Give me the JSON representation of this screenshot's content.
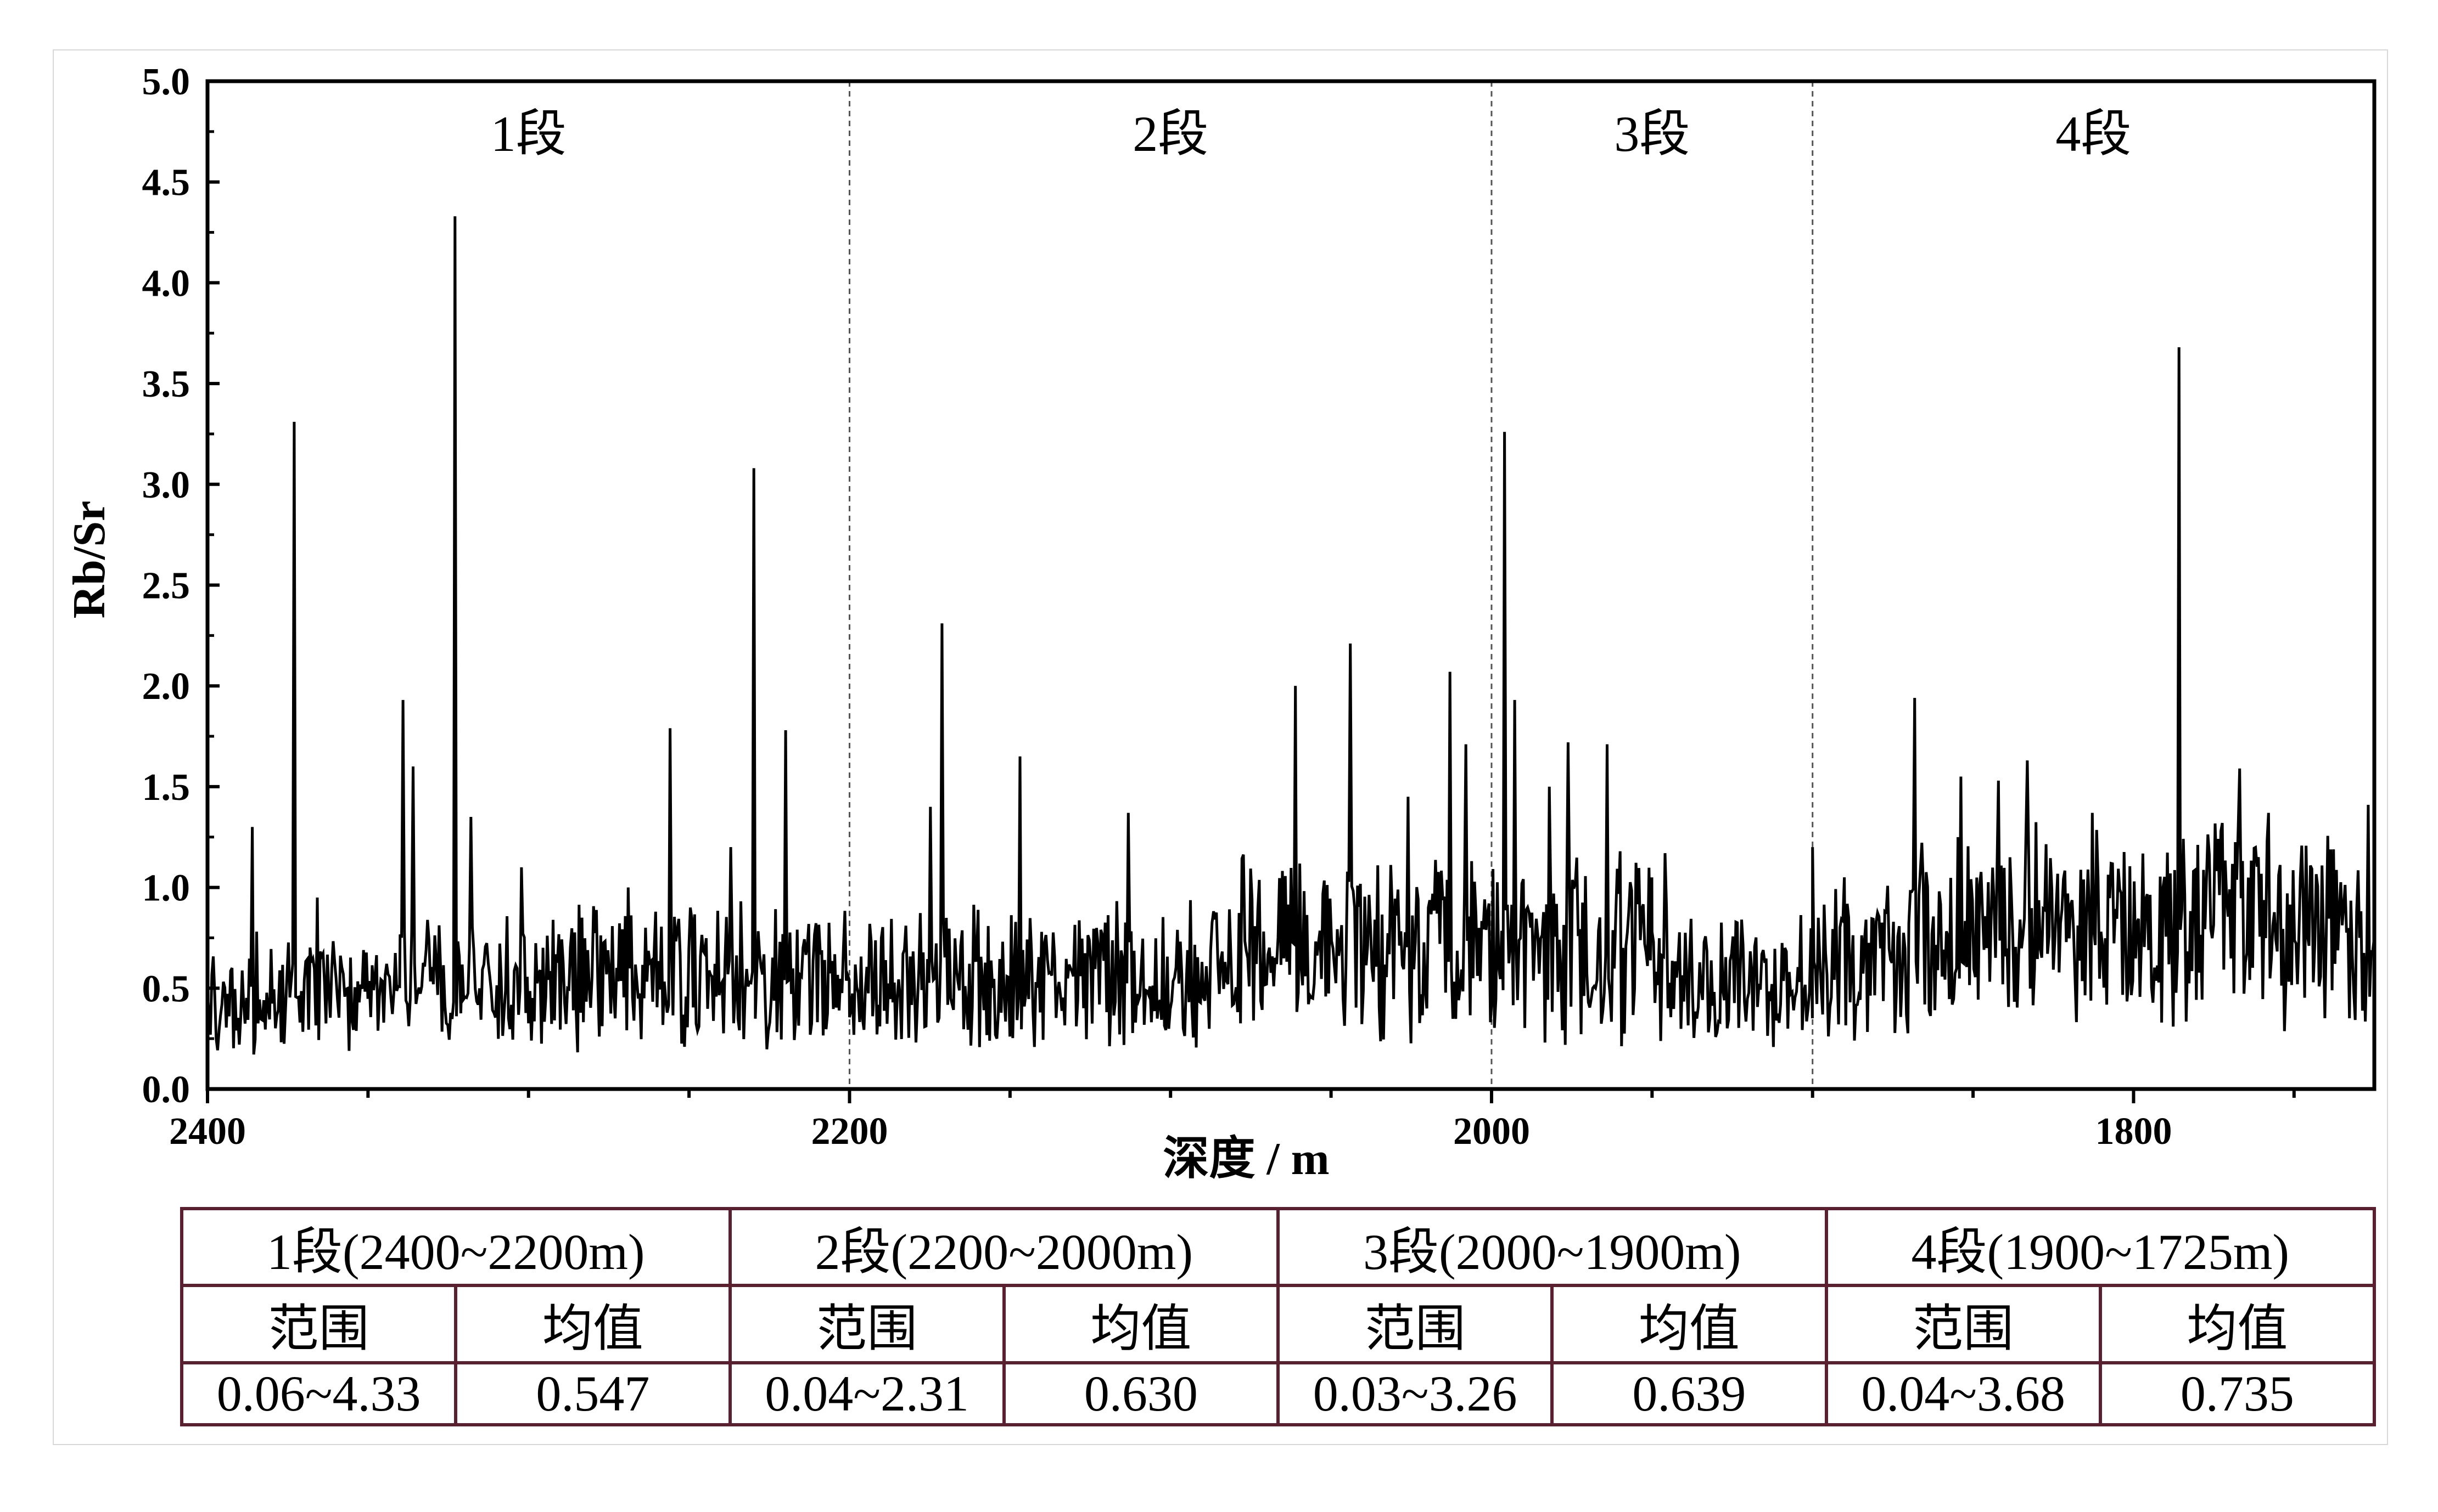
{
  "chart_data": {
    "type": "line",
    "xlabel": "深度 / m",
    "ylabel": "Rb/Sr",
    "xlim": [
      2400,
      1725
    ],
    "x_reversed": true,
    "ylim": [
      0.0,
      5.0
    ],
    "x_ticks": [
      2400,
      2200,
      2000,
      1800
    ],
    "y_ticks": [
      "0.0",
      "0.5",
      "1.0",
      "1.5",
      "2.0",
      "2.5",
      "3.0",
      "3.5",
      "4.0",
      "4.5",
      "5.0"
    ],
    "line_color": "#000000",
    "grid": false,
    "segments": [
      {
        "label": "1段",
        "from": 2400,
        "to": 2200
      },
      {
        "label": "2段",
        "from": 2200,
        "to": 2000
      },
      {
        "label": "3段",
        "from": 2000,
        "to": 1900
      },
      {
        "label": "4段",
        "from": 1900,
        "to": 1725
      }
    ],
    "boundaries": [
      2200,
      2000,
      1900
    ],
    "peaks": [
      {
        "x": 2386,
        "y": 1.3
      },
      {
        "x": 2373,
        "y": 3.31
      },
      {
        "x": 2366,
        "y": 0.95
      },
      {
        "x": 2339,
        "y": 1.93
      },
      {
        "x": 2336,
        "y": 1.6
      },
      {
        "x": 2323,
        "y": 4.33
      },
      {
        "x": 2318,
        "y": 1.35
      },
      {
        "x": 2302,
        "y": 1.1
      },
      {
        "x": 2269,
        "y": 1.0
      },
      {
        "x": 2256,
        "y": 1.79
      },
      {
        "x": 2237,
        "y": 1.2
      },
      {
        "x": 2230,
        "y": 3.08
      },
      {
        "x": 2220,
        "y": 1.78
      },
      {
        "x": 2175,
        "y": 1.4
      },
      {
        "x": 2171,
        "y": 2.31
      },
      {
        "x": 2147,
        "y": 1.65
      },
      {
        "x": 2113,
        "y": 1.37
      },
      {
        "x": 2061,
        "y": 2.0
      },
      {
        "x": 2044,
        "y": 2.21
      },
      {
        "x": 2026,
        "y": 1.45
      },
      {
        "x": 2013,
        "y": 2.07
      },
      {
        "x": 2008,
        "y": 1.71
      },
      {
        "x": 1996,
        "y": 3.26
      },
      {
        "x": 1993,
        "y": 1.93
      },
      {
        "x": 1982,
        "y": 1.5
      },
      {
        "x": 1976,
        "y": 1.72
      },
      {
        "x": 1964,
        "y": 1.71
      },
      {
        "x": 1946,
        "y": 1.17
      },
      {
        "x": 1900,
        "y": 1.2
      },
      {
        "x": 1890,
        "y": 1.05
      },
      {
        "x": 1868,
        "y": 1.94
      },
      {
        "x": 1854,
        "y": 1.55
      },
      {
        "x": 1842,
        "y": 1.53
      },
      {
        "x": 1833,
        "y": 1.63
      },
      {
        "x": 1813,
        "y": 1.37
      },
      {
        "x": 1800,
        "y": 1.03
      },
      {
        "x": 1786,
        "y": 3.68
      },
      {
        "x": 1767,
        "y": 1.59
      },
      {
        "x": 1758,
        "y": 1.37
      },
      {
        "x": 1727,
        "y": 1.41
      }
    ],
    "baseline": [
      {
        "from": 2400,
        "to": 2340,
        "mean": 0.47,
        "amp": 0.33
      },
      {
        "from": 2340,
        "to": 2300,
        "mean": 0.55,
        "amp": 0.35
      },
      {
        "from": 2300,
        "to": 2200,
        "mean": 0.55,
        "amp": 0.4
      },
      {
        "from": 2200,
        "to": 2080,
        "mean": 0.55,
        "amp": 0.42
      },
      {
        "from": 2080,
        "to": 2000,
        "mean": 0.72,
        "amp": 0.5
      },
      {
        "from": 2000,
        "to": 1950,
        "mean": 0.7,
        "amp": 0.52
      },
      {
        "from": 1950,
        "to": 1900,
        "mean": 0.55,
        "amp": 0.38
      },
      {
        "from": 1900,
        "to": 1870,
        "mean": 0.6,
        "amp": 0.45
      },
      {
        "from": 1870,
        "to": 1725,
        "mean": 0.8,
        "amp": 0.55
      }
    ]
  },
  "table": {
    "headers": [
      "1段(2400~2200m)",
      "2段(2200~2000m)",
      "3段(2000~1900m)",
      "4段(1900~1725m)"
    ],
    "subheaders": [
      "范围",
      "均值",
      "范围",
      "均值",
      "范围",
      "均值",
      "范围",
      "均值"
    ],
    "values": [
      "0.06~4.33",
      "0.547",
      "0.04~2.31",
      "0.630",
      "0.03~3.26",
      "0.639",
      "0.04~3.68",
      "0.735"
    ]
  }
}
